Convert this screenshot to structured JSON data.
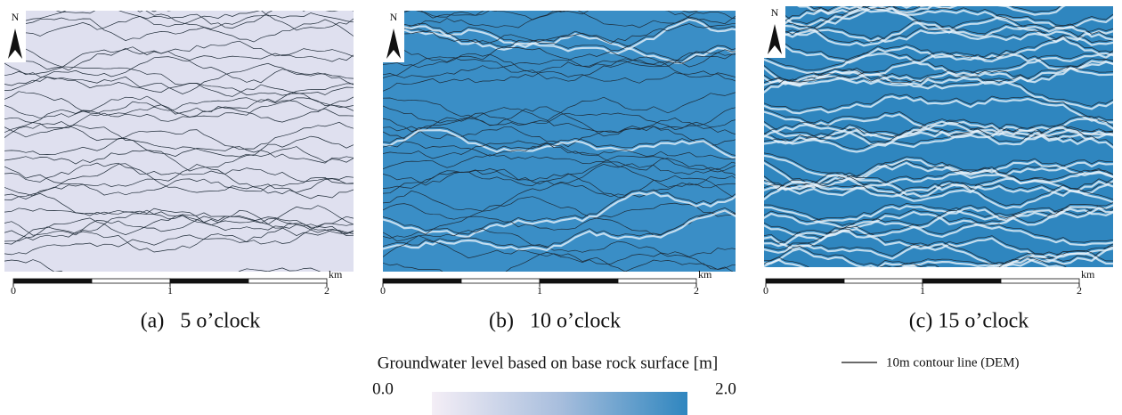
{
  "panels": [
    {
      "caption": "(a)   5 o’clock",
      "north": "N",
      "scale": {
        "ticks": [
          "0",
          "1",
          "2"
        ],
        "unit": "km"
      }
    },
    {
      "caption": "(b)   10 o’clock",
      "north": "N",
      "scale": {
        "ticks": [
          "0",
          "1",
          "2"
        ],
        "unit": "km"
      }
    },
    {
      "caption": "(c) 15 o’clock",
      "north": "N",
      "scale": {
        "ticks": [
          "0",
          "1",
          "2"
        ],
        "unit": "km"
      }
    }
  ],
  "colorbar": {
    "title": "Groundwater level based on base rock surface [m]",
    "min": "0.0",
    "max": "2.0"
  },
  "legend": {
    "label": "10m contour line (DEM)"
  }
}
